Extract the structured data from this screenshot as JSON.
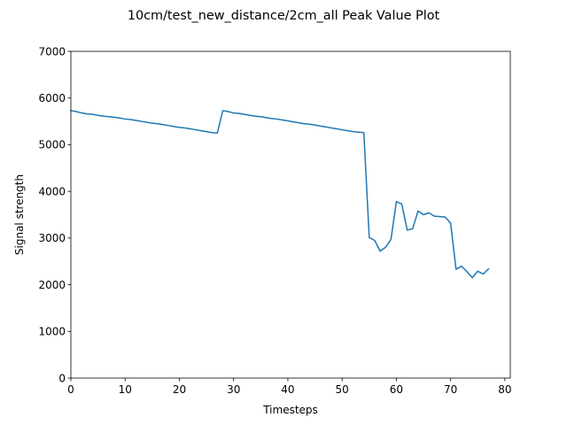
{
  "chart_data": {
    "type": "line",
    "title": "10cm/test_new_distance/2cm_all Peak Value Plot",
    "xlabel": "Timesteps",
    "ylabel": "Signal strength",
    "xlim": [
      0,
      81
    ],
    "ylim": [
      0,
      7000
    ],
    "xticks": [
      0,
      10,
      20,
      30,
      40,
      50,
      60,
      70,
      80
    ],
    "yticks": [
      0,
      1000,
      2000,
      3000,
      4000,
      5000,
      6000,
      7000
    ],
    "grid": false,
    "legend": "none",
    "series": [
      {
        "color": "#1f77b4",
        "x": [
          0,
          1,
          2,
          3,
          4,
          5,
          6,
          7,
          8,
          9,
          10,
          11,
          12,
          13,
          14,
          15,
          16,
          17,
          18,
          19,
          20,
          21,
          22,
          23,
          24,
          25,
          26,
          27,
          28,
          29,
          30,
          31,
          32,
          33,
          34,
          35,
          36,
          37,
          38,
          39,
          40,
          41,
          42,
          43,
          44,
          45,
          46,
          47,
          48,
          49,
          50,
          51,
          52,
          53,
          54,
          55,
          56,
          57,
          58,
          59,
          60,
          61,
          62,
          63,
          64,
          65,
          66,
          67,
          68,
          69,
          70,
          71,
          72,
          73,
          74,
          75,
          76,
          77
        ],
        "y": [
          5730,
          5710,
          5680,
          5660,
          5650,
          5630,
          5610,
          5600,
          5590,
          5570,
          5550,
          5540,
          5520,
          5500,
          5480,
          5460,
          5450,
          5430,
          5410,
          5390,
          5370,
          5360,
          5340,
          5320,
          5300,
          5280,
          5260,
          5250,
          5730,
          5710,
          5680,
          5670,
          5650,
          5630,
          5610,
          5600,
          5580,
          5560,
          5550,
          5530,
          5510,
          5490,
          5470,
          5450,
          5440,
          5420,
          5400,
          5380,
          5360,
          5340,
          5320,
          5300,
          5280,
          5270,
          5260,
          3010,
          2950,
          2720,
          2800,
          2970,
          3780,
          3730,
          3170,
          3200,
          3580,
          3500,
          3540,
          3470,
          3460,
          3450,
          3320,
          2330,
          2400,
          2280,
          2150,
          2290,
          2230,
          2340
        ]
      }
    ]
  }
}
